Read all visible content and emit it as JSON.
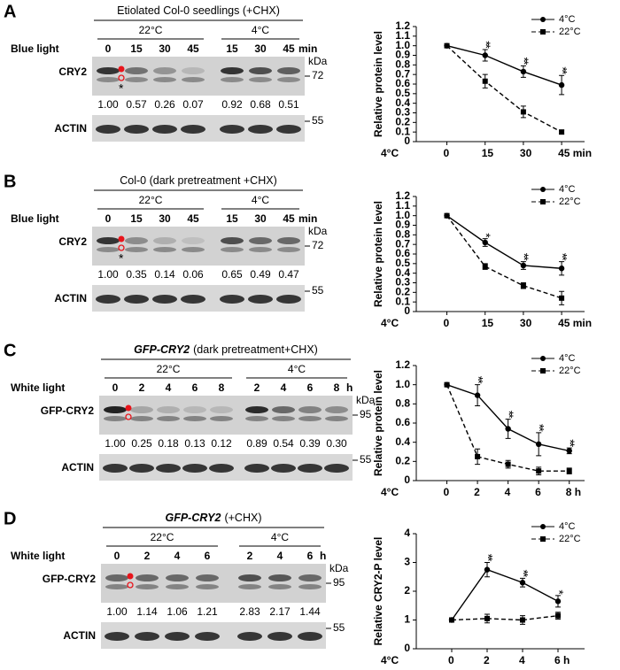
{
  "panels": [
    {
      "label": "A",
      "title": "Etiolated Col-0 seedlings (+CHX)",
      "groups": [
        "22°C",
        "4°C"
      ],
      "treatment": "Blue light",
      "lanes": [
        "0",
        "15",
        "30",
        "45",
        "15",
        "30",
        "45"
      ],
      "unit": "min",
      "kda": "kDa",
      "protein": "CRY2",
      "marker": "72",
      "star": "*",
      "quant": [
        "1.00",
        "0.57",
        "0.26",
        "0.07",
        "0.92",
        "0.68",
        "0.51"
      ],
      "loading": "ACTIN",
      "loading_marker": "55"
    },
    {
      "label": "B",
      "title": "Col-0 (dark pretreatment +CHX)",
      "groups": [
        "22°C",
        "4°C"
      ],
      "treatment": "Blue light",
      "lanes": [
        "0",
        "15",
        "30",
        "45",
        "15",
        "30",
        "45"
      ],
      "unit": "min",
      "kda": "kDa",
      "protein": "CRY2",
      "marker": "72",
      "star": "*",
      "quant": [
        "1.00",
        "0.35",
        "0.14",
        "0.06",
        "0.65",
        "0.49",
        "0.47"
      ],
      "loading": "ACTIN",
      "loading_marker": "55"
    },
    {
      "label": "C",
      "title_italic": "GFP-CRY2",
      "title": "(dark pretreatment+CHX)",
      "groups": [
        "22°C",
        "4°C"
      ],
      "treatment": "White light",
      "lanes": [
        "0",
        "2",
        "4",
        "6",
        "8",
        "2",
        "4",
        "6",
        "8"
      ],
      "unit": "h",
      "kda": "kDa",
      "protein": "GFP-CRY2",
      "marker": "95",
      "quant": [
        "1.00",
        "0.25",
        "0.18",
        "0.13",
        "0.12",
        "0.89",
        "0.54",
        "0.39",
        "0.30"
      ],
      "loading": "ACTIN",
      "loading_marker": "55"
    },
    {
      "label": "D",
      "title_italic": "GFP-CRY2",
      "title": "(+CHX)",
      "groups": [
        "22°C",
        "4°C"
      ],
      "treatment": "White light",
      "lanes": [
        "0",
        "2",
        "4",
        "6",
        "2",
        "4",
        "6"
      ],
      "unit": "h",
      "kda": "kDa",
      "protein": "GFP-CRY2",
      "marker": "95",
      "quant": [
        "1.00",
        "1.14",
        "1.06",
        "1.21",
        "2.83",
        "2.17",
        "1.44"
      ],
      "loading": "ACTIN",
      "loading_marker": "55"
    }
  ],
  "chart_data": [
    {
      "type": "line",
      "ylabel": "Relative protein level",
      "xlabel": "4°C",
      "legend": "upper right",
      "x": [
        0,
        15,
        30,
        45
      ],
      "xlim": [
        -12,
        54
      ],
      "xticks": [
        0,
        15,
        30,
        {
          "value": 45,
          "label": "45 min"
        }
      ],
      "ylim": [
        0,
        1.2
      ],
      "yticks": [
        0,
        0.1,
        0.2,
        0.3,
        0.4,
        0.5,
        0.6,
        0.7,
        0.8,
        0.9,
        {
          "value": 1,
          "label": "1.0"
        },
        1.1,
        1.2
      ],
      "series": [
        {
          "name": "4°C",
          "color": "#000000",
          "dash": false,
          "marker": "circle",
          "values": [
            1,
            0.9,
            0.73,
            0.59
          ],
          "errors": [
            0,
            0.06,
            0.06,
            0.1
          ]
        },
        {
          "name": "22°C",
          "color": "#000000",
          "dash": true,
          "marker": "square",
          "values": [
            1,
            0.63,
            0.31,
            0.1
          ],
          "errors": [
            0,
            0.07,
            0.06,
            0.02
          ]
        }
      ],
      "annotations": [
        {
          "x": 15,
          "text": "**"
        },
        {
          "x": 30,
          "text": "**"
        },
        {
          "x": 45,
          "text": "**"
        }
      ]
    },
    {
      "type": "line",
      "ylabel": "Relative protein level",
      "xlabel": "4°C",
      "legend": "upper right",
      "x": [
        0,
        15,
        30,
        45
      ],
      "xlim": [
        -12,
        54
      ],
      "xticks": [
        0,
        15,
        30,
        {
          "value": 45,
          "label": "45 min"
        }
      ],
      "ylim": [
        0,
        1.2
      ],
      "yticks": [
        0,
        0.1,
        0.2,
        0.3,
        0.4,
        0.5,
        0.6,
        0.7,
        0.8,
        0.9,
        {
          "value": 1,
          "label": "1.0"
        },
        1.1,
        1.2
      ],
      "series": [
        {
          "name": "4°C",
          "color": "#000000",
          "dash": false,
          "marker": "circle",
          "values": [
            1,
            0.72,
            0.48,
            0.45
          ],
          "errors": [
            0,
            0.04,
            0.04,
            0.07
          ]
        },
        {
          "name": "22°C",
          "color": "#000000",
          "dash": true,
          "marker": "square",
          "values": [
            1,
            0.47,
            0.27,
            0.14
          ],
          "errors": [
            0,
            0.03,
            0.03,
            0.07
          ]
        }
      ],
      "annotations": [
        {
          "x": 15,
          "text": "*"
        },
        {
          "x": 30,
          "text": "**"
        },
        {
          "x": 45,
          "text": "**"
        }
      ]
    },
    {
      "type": "line",
      "ylabel": "Relative protein level",
      "xlabel": "4°C",
      "legend": "upper right",
      "x": [
        0,
        2,
        4,
        6,
        8
      ],
      "xlim": [
        -2,
        9
      ],
      "xticks": [
        0,
        2,
        4,
        6,
        {
          "value": 8,
          "label": "8 h"
        }
      ],
      "ylim": [
        0,
        1.2
      ],
      "yticks": [
        0,
        0.2,
        0.4,
        0.6,
        0.8,
        {
          "value": 1,
          "label": "1.0"
        },
        1.2
      ],
      "series": [
        {
          "name": "4°C",
          "color": "#000000",
          "dash": false,
          "marker": "circle",
          "values": [
            1,
            0.89,
            0.54,
            0.38,
            0.31
          ],
          "errors": [
            0,
            0.11,
            0.1,
            0.12,
            0.03
          ]
        },
        {
          "name": "22°C",
          "color": "#000000",
          "dash": true,
          "marker": "square",
          "values": [
            1,
            0.25,
            0.17,
            0.1,
            0.1
          ],
          "errors": [
            0,
            0.08,
            0.04,
            0.04,
            0.03
          ]
        }
      ],
      "annotations": [
        {
          "x": 2,
          "text": "**"
        },
        {
          "x": 4,
          "text": "**"
        },
        {
          "x": 6,
          "text": "**"
        },
        {
          "x": 8,
          "text": "**"
        }
      ]
    },
    {
      "type": "line",
      "ylabel": "Relative CRY2-P level",
      "xlabel": "4°C",
      "legend": "upper right",
      "x": [
        0,
        2,
        4,
        6
      ],
      "xlim": [
        -2,
        7.5
      ],
      "xticks": [
        0,
        2,
        4,
        {
          "value": 6,
          "label": "6 h"
        }
      ],
      "ylim": [
        0,
        4
      ],
      "yticks": [
        0,
        1,
        2,
        3,
        4
      ],
      "series": [
        {
          "name": "4°C",
          "color": "#000000",
          "dash": false,
          "marker": "circle",
          "values": [
            1,
            2.75,
            2.3,
            1.65
          ],
          "errors": [
            0,
            0.25,
            0.15,
            0.2
          ]
        },
        {
          "name": "22°C",
          "color": "#000000",
          "dash": true,
          "marker": "square",
          "values": [
            1,
            1.05,
            1,
            1.15
          ],
          "errors": [
            0,
            0.15,
            0.15,
            0.12
          ]
        }
      ],
      "annotations": [
        {
          "x": 2,
          "text": "**"
        },
        {
          "x": 4,
          "text": "**"
        },
        {
          "x": 6,
          "text": "*"
        }
      ]
    }
  ]
}
